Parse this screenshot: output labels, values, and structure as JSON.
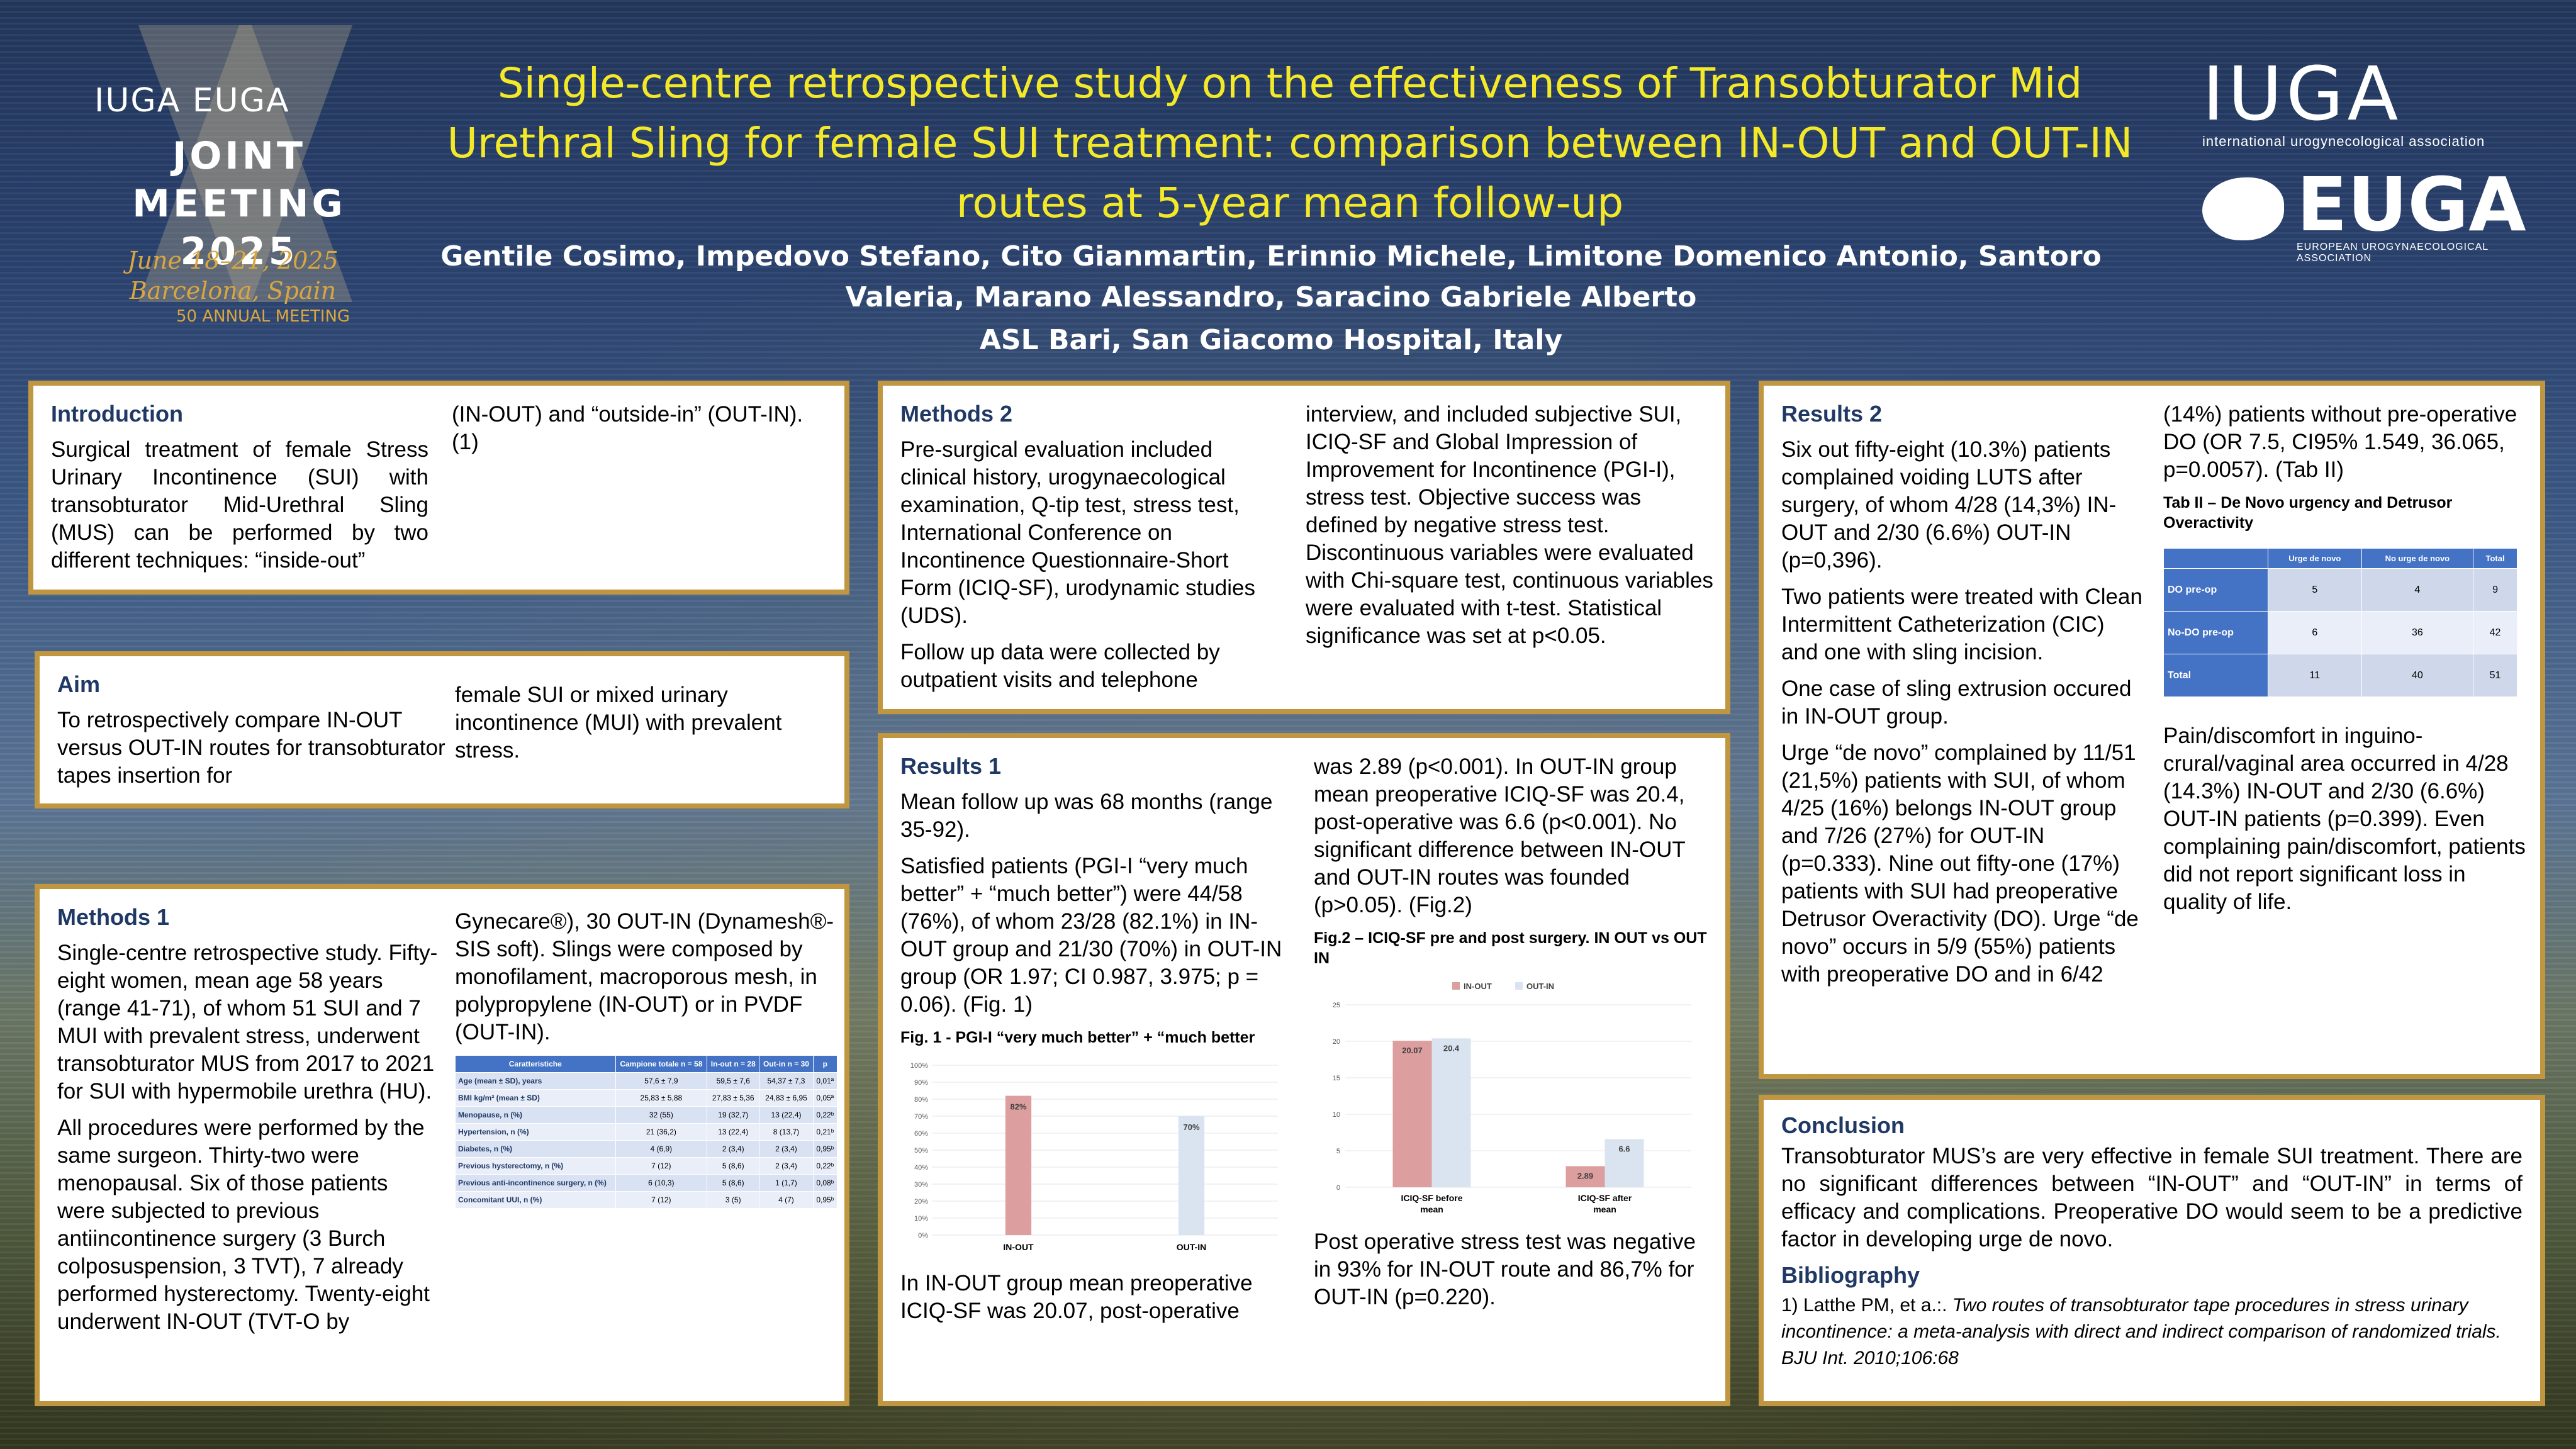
{
  "header": {
    "meeting_brand": "IUGA EUGA",
    "joint_meeting": "JOINT MEETING",
    "year": "2025",
    "dates": "June 18–21, 2025",
    "location": "Barcelona, Spain",
    "anniversary": "50 ANNUAL MEETING",
    "title": "Single-centre retrospective study on the effectiveness of Transobturator Mid Urethral Sling for female SUI treatment: comparison between IN-OUT and OUT-IN routes at 5-year mean follow-up",
    "authors": "Gentile Cosimo, Impedovo Stefano, Cito Gianmartin, Erinnio Michele, Limitone Domenico Antonio, Santoro Valeria, Marano Alessandro, Saracino Gabriele Alberto",
    "affiliation": "ASL Bari, San Giacomo Hospital, Italy",
    "iuga": "IUGA",
    "iuga_sub": "international urogynecological association",
    "euga": "EUGA",
    "euga_sub": "EUROPEAN UROGYNAECOLOGICAL ASSOCIATION"
  },
  "introduction": {
    "heading": "Introduction",
    "text1": "Surgical treatment of female Stress Urinary Incontinence (SUI) with transobturator Mid-Urethral Sling (MUS) can be performed by two different techniques: “inside-out”",
    "text2": "(IN-OUT) and “outside-in” (OUT-IN). (1)"
  },
  "aim": {
    "heading": "Aim",
    "text1": "To retrospectively compare IN-OUT versus OUT-IN routes for transobturator tapes insertion for",
    "text2": "female SUI or mixed urinary incontinence (MUI) with prevalent stress."
  },
  "methods1": {
    "heading": "Methods 1",
    "p1": "Single-centre retrospective study. Fifty-eight women, mean age 58 years (range 41-71), of whom 51 SUI and 7 MUI with prevalent stress, underwent transobturator MUS from 2017 to 2021 for SUI with  hypermobile urethra (HU).",
    "p2": "All procedures were performed by the same surgeon. Thirty-two were menopausal. Six of those patients were subjected to previous antiincontinence surgery (3 Burch colposuspension, 3 TVT), 7 already performed hysterectomy. Twenty-eight underwent IN-OUT (TVT-O by",
    "p3": "Gynecare®),  30 OUT-IN (Dynamesh®-SIS soft). Slings were composed by monofilament, macroporous mesh, in polypropylene (IN-OUT) or in PVDF (OUT-IN).",
    "table": {
      "headers": [
        "Caratteristiche",
        "Campione totale n = 58",
        "In-out n = 28",
        "Out-in n = 30",
        "p"
      ],
      "rows": [
        [
          "Age (mean ± SD), years",
          "57,6 ± 7,9",
          "59,5 ± 7,6",
          "54,37 ± 7,3",
          "0,01ª"
        ],
        [
          "BMI kg/m² (mean ± SD)",
          "25,83 ± 5,88",
          "27,83 ± 5,36",
          "24,83 ± 6,95",
          "0,05ª"
        ],
        [
          "Menopause, n (%)",
          "32 (55)",
          "19 (32,7)",
          "13 (22,4)",
          "0,22ᵇ"
        ],
        [
          "Hypertension, n (%)",
          "21 (36,2)",
          "13 (22,4)",
          "8 (13,7)",
          "0,21ᵇ"
        ],
        [
          "Diabetes, n (%)",
          "4 (6,9)",
          "2 (3,4)",
          "2 (3,4)",
          "0,95ᵇ"
        ],
        [
          "Previous hysterectomy, n (%)",
          "7 (12)",
          "5 (8,6)",
          "2 (3,4)",
          "0,22ᵇ"
        ],
        [
          "Previous anti-incontinence surgery, n (%)",
          "6 (10,3)",
          "5 (8,6)",
          "1 (1,7)",
          "0,08ᵇ"
        ],
        [
          "Concomitant UUI, n (%)",
          "7 (12)",
          "3 (5)",
          "4 (7)",
          "0,95ᵇ"
        ]
      ]
    }
  },
  "methods2": {
    "heading": "Methods 2",
    "p1": "Pre-surgical evaluation included clinical history, urogynaecological examination, Q-tip test, stress test, International Conference on Incontinence Questionnaire-Short Form (ICIQ-SF), urodynamic studies (UDS).",
    "p2": "Follow up data were collected by outpatient visits and telephone",
    "p3": "interview, and included subjective SUI, ICIQ-SF and Global Impression of Improvement for Incontinence (PGI-I), stress test. Objective success was defined by negative stress test. Discontinuous variables were evaluated with Chi-square test, continuous variables were evaluated with t-test. Statistical significance was set at p<0.05."
  },
  "results1": {
    "heading": "Results 1",
    "p1": "Mean follow up was 68 months (range 35-92).",
    "p2": "Satisfied patients (PGI-I “very much better” + “much better”) were 44/58 (76%), of whom 23/28 (82.1%) in IN-OUT group and 21/30 (70%) in OUT-IN group (OR 1.97; CI 0.987, 3.975; p = 0.06). (Fig. 1)",
    "fig1_title": "Fig. 1 - PGI-I “very much better” + “much better",
    "p3": "In IN-OUT group mean preoperative ICIQ-SF was 20.07, post-operative",
    "p4": "was 2.89 (p<0.001). In OUT-IN group mean preoperative ICIQ-SF was 20.4, post-operative was 6.6 (p<0.001). No significant difference between IN-OUT and OUT-IN routes was founded (p>0.05). (Fig.2)",
    "fig2_title": "Fig.2 – ICIQ-SF pre and post surgery. IN OUT vs OUT IN",
    "p5": "Post operative stress test was negative in 93% for IN-OUT route and 86,7% for OUT-IN (p=0.220)."
  },
  "results2": {
    "heading": "Results 2",
    "p1": "Six out fifty-eight (10.3%) patients complained voiding LUTS after surgery, of whom 4/28 (14,3%) IN-OUT and 2/30 (6.6%) OUT-IN (p=0,396).",
    "p2": "Two patients were treated with Clean Intermittent Catheterization (CIC) and one with sling incision.",
    "p3": "One case of sling extrusion occured in IN-OUT group.",
    "p4": "Urge “de novo” complained by 11/51 (21,5%) patients with SUI, of whom 4/25 (16%) belongs IN-OUT group and 7/26 (27%) for OUT-IN (p=0.333). Nine out fifty-one (17%) patients with SUI had preoperative Detrusor Overactivity (DO). Urge “de novo” occurs in 5/9 (55%) patients with preoperative DO and in 6/42",
    "p5": "(14%) patients without pre-operative DO (OR 7.5, CI95% 1.549, 36.065, p=0.0057). (Tab II)",
    "tab_title": "Tab II – De Novo urgency and Detrusor Overactivity",
    "table": {
      "headers": [
        "",
        "Urge de novo",
        "No urge de novo",
        "Total"
      ],
      "rows": [
        [
          "DO pre-op",
          "5",
          "4",
          "9"
        ],
        [
          "No-DO pre-op",
          "6",
          "36",
          "42"
        ],
        [
          "Total",
          "11",
          "40",
          "51"
        ]
      ]
    },
    "p6": "Pain/discomfort in inguino-crural/vaginal area occurred in 4/28 (14.3%) IN-OUT and 2/30 (6.6%) OUT-IN patients (p=0.399). Even complaining pain/discomfort, patients did not report significant loss in quality of life."
  },
  "conclusion": {
    "heading": "Conclusion",
    "text": "Transobturator MUS’s are very effective in female SUI treatment. There are no significant differences between “IN-OUT” and “OUT-IN” in terms of efficacy and complications. Preoperative DO would seem to be a predictive factor in developing urge de novo.",
    "biblio_heading": "Bibliography",
    "ref_prefix": "1) Latthe PM, et a.:. ",
    "ref_italic": "Two routes of transobturator tape procedures in stress urinary incontinence: a meta-analysis with direct and indirect comparison of randomized trials. BJU Int. 2010;106:68"
  },
  "chart_data": [
    {
      "type": "bar",
      "categories": [
        "IN-OUT",
        "OUT-IN"
      ],
      "values": [
        82,
        70
      ],
      "value_labels": [
        "82%",
        "70%"
      ],
      "ylim": [
        0,
        100
      ],
      "yticks": [
        "0%",
        "10%",
        "20%",
        "30%",
        "40%",
        "50%",
        "60%",
        "70%",
        "80%",
        "90%",
        "100%"
      ],
      "colors": [
        "#dc9e9e",
        "#dae3f0"
      ]
    },
    {
      "type": "bar",
      "categories": [
        "ICIQ-SF before mean",
        "ICIQ-SF after mean"
      ],
      "series": [
        {
          "name": "IN-OUT",
          "values": [
            20.07,
            2.89
          ],
          "color": "#dc9e9e"
        },
        {
          "name": "OUT-IN",
          "values": [
            20.4,
            6.6
          ],
          "color": "#dae3f0"
        }
      ],
      "ylim": [
        0,
        25
      ],
      "yticks": [
        "0",
        "5",
        "10",
        "15",
        "20",
        "25"
      ],
      "legend": "top"
    }
  ]
}
